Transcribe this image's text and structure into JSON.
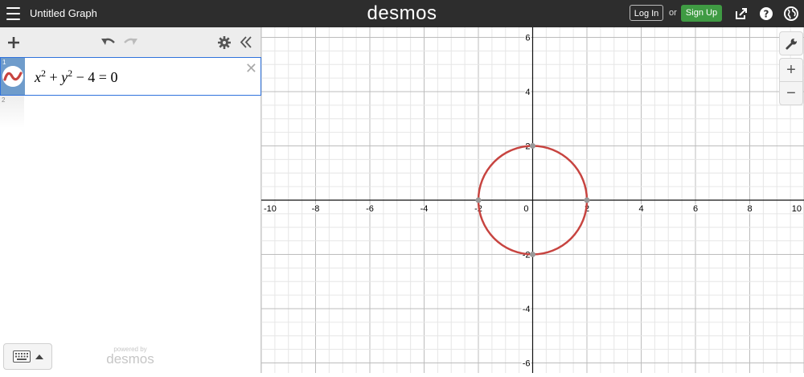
{
  "header": {
    "graph_title": "Untitled Graph",
    "logo": "desmos",
    "login_label": "Log In",
    "or_text": "or",
    "signup_label": "Sign Up",
    "icons": [
      "menu-icon",
      "share-icon",
      "help-icon",
      "language-icon"
    ]
  },
  "expressions_panel": {
    "toolbar_icons": [
      "add-icon",
      "undo-icon",
      "redo-icon",
      "settings-icon",
      "collapse-icon"
    ],
    "items": [
      {
        "number": "1",
        "latex": "x^2 + y^2 - 4 = 0",
        "color": "#c74440"
      },
      {
        "number": "2",
        "latex": ""
      }
    ],
    "powered_by": "powered by",
    "powered_logo": "desmos"
  },
  "graph": {
    "x_range": [
      -10,
      10
    ],
    "y_range": [
      -6,
      6
    ],
    "x_ticks": [
      "-10",
      "-8",
      "-6",
      "-4",
      "-2",
      "0",
      "2",
      "4",
      "6",
      "8",
      "10"
    ],
    "y_ticks": [
      "6",
      "4",
      "2",
      "-2",
      "-4",
      "-6"
    ],
    "curve": {
      "type": "circle",
      "center": [
        0,
        0
      ],
      "radius": 2,
      "color": "#c74440"
    },
    "intercepts": [
      [
        -2,
        0
      ],
      [
        2,
        0
      ],
      [
        0,
        2
      ],
      [
        0,
        -2
      ]
    ]
  },
  "graph_controls": {
    "wrench_icon": "wrench-icon",
    "zoom_in": "+",
    "zoom_out": "−"
  }
}
